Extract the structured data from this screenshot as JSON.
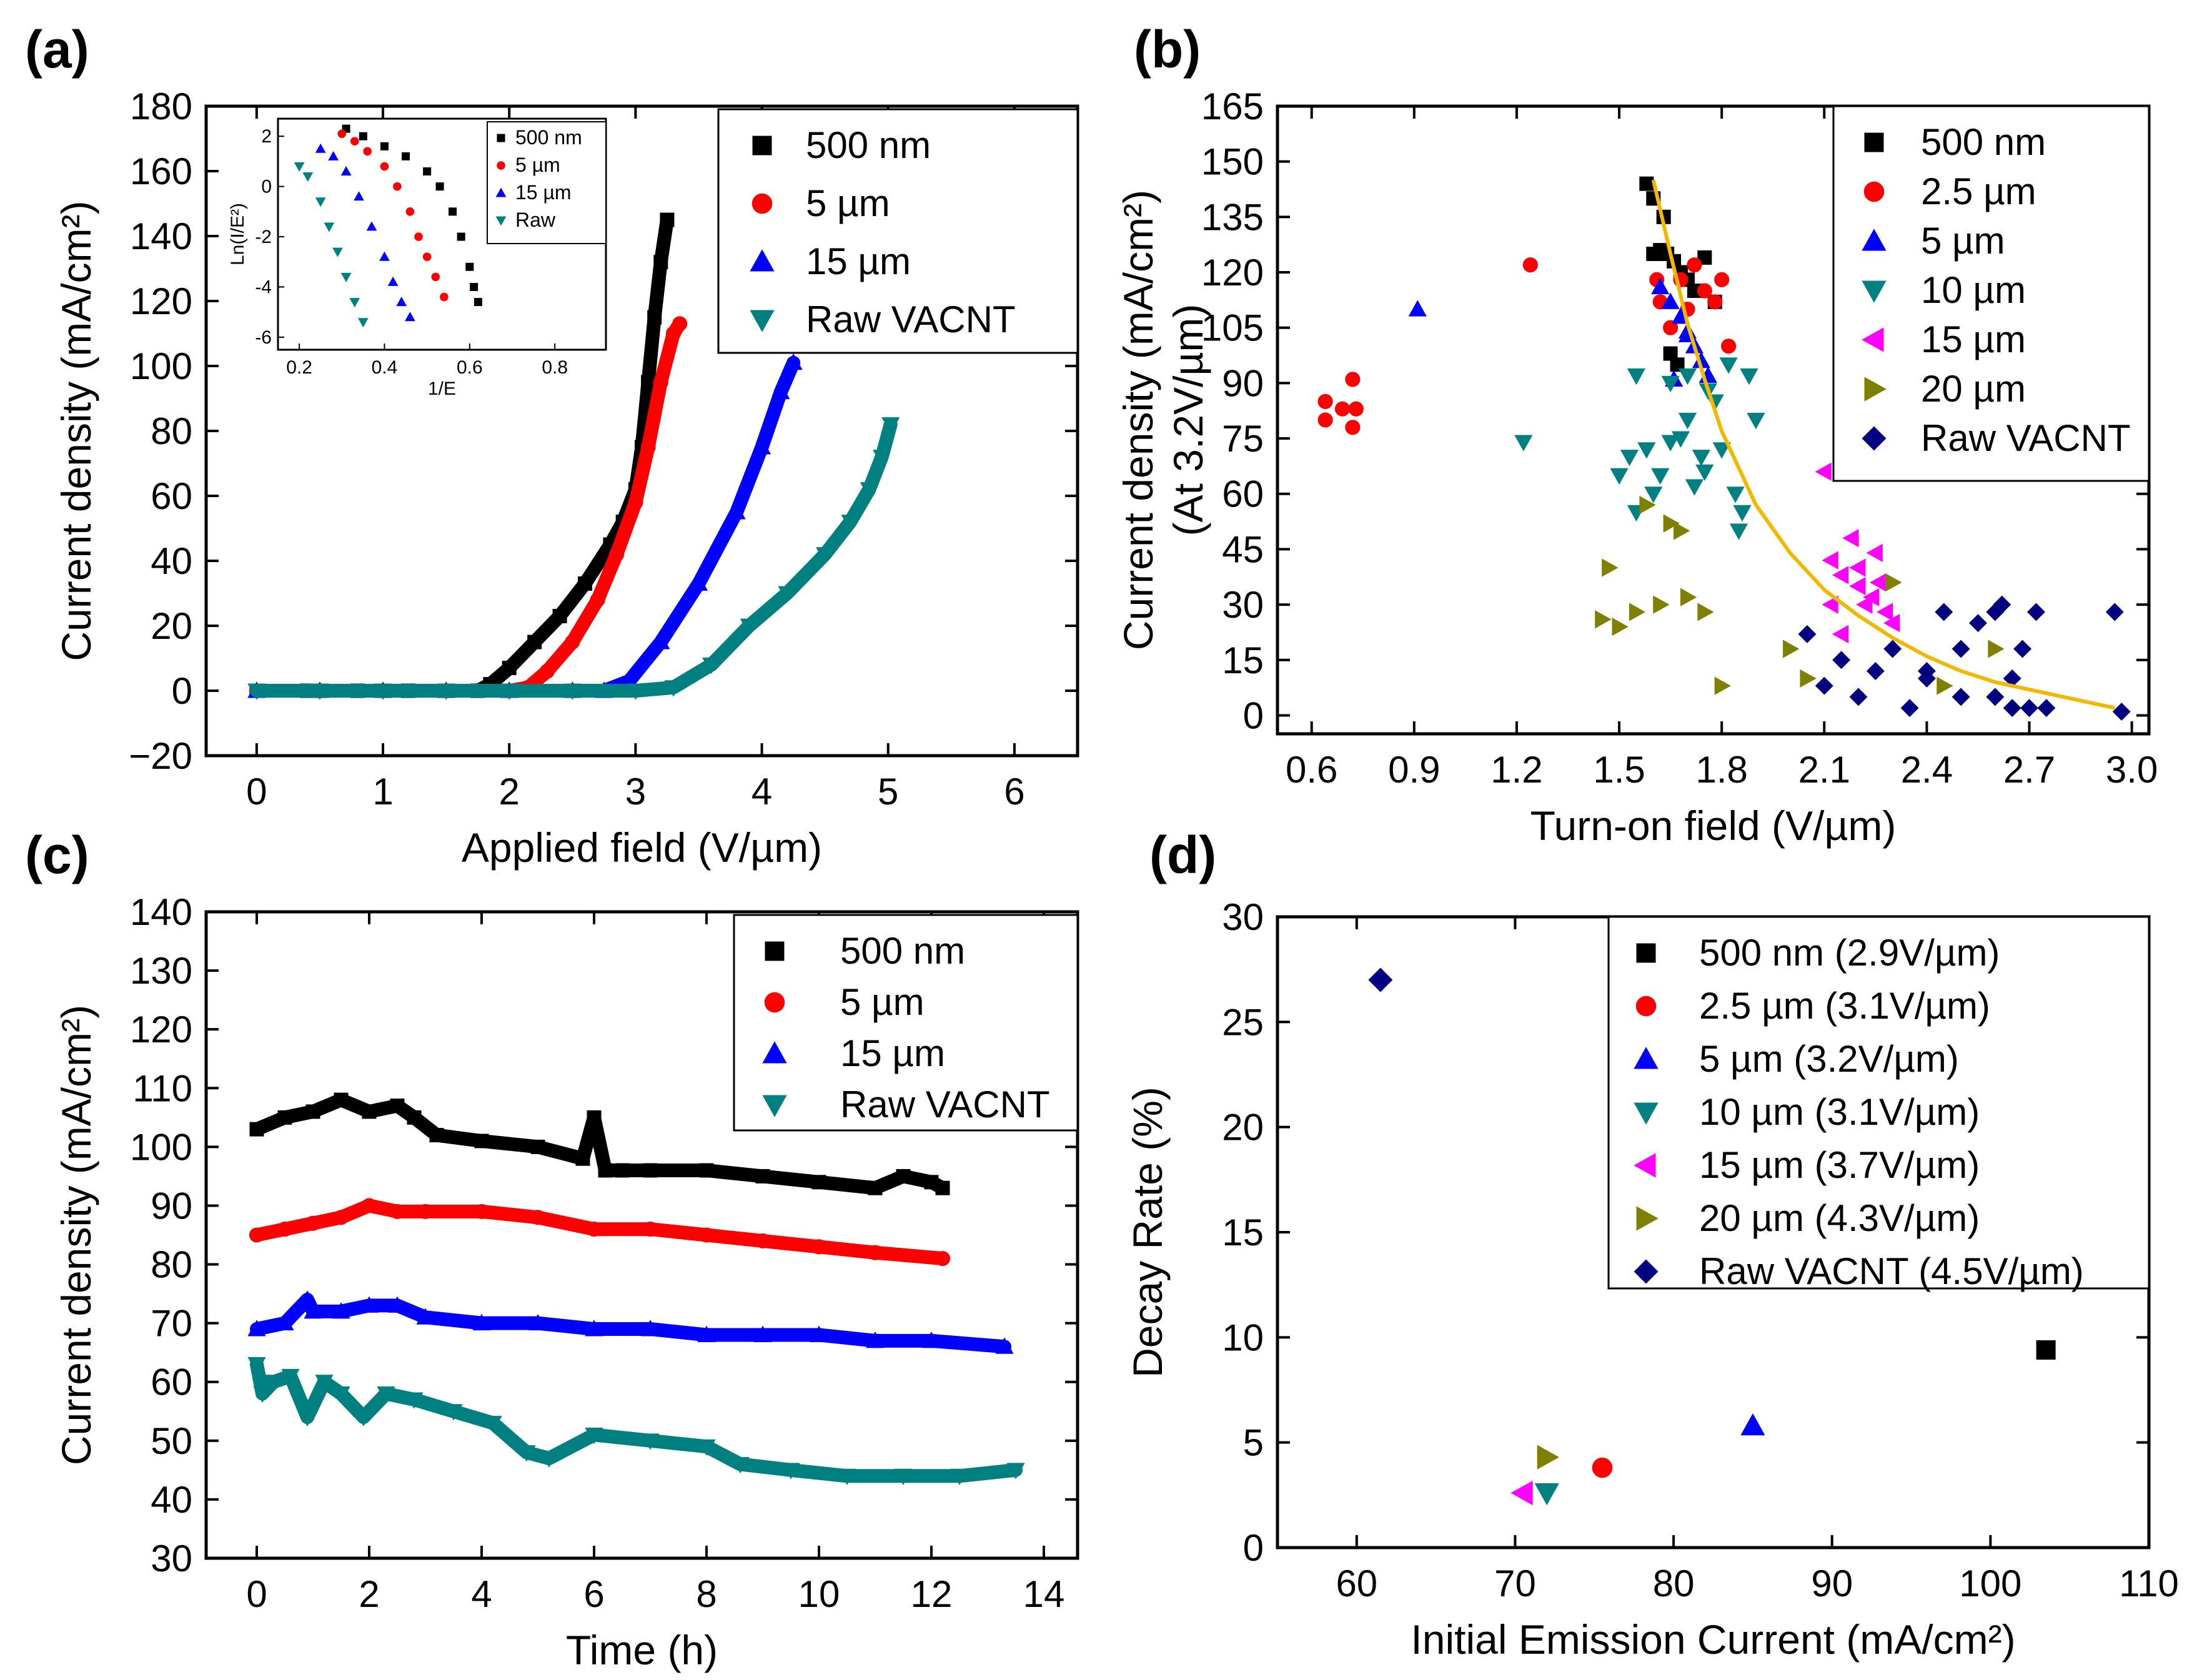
{
  "chart_data": [
    {
      "id": "a",
      "panel_label": "(a)",
      "type": "scatter",
      "xlabel": "Applied field (V/µm)",
      "ylabel": "Current density (mA/cm²)",
      "xlim": [
        -0.4,
        6.5
      ],
      "ylim": [
        -20,
        180
      ],
      "xticks": [
        0,
        1,
        2,
        3,
        4,
        5,
        6
      ],
      "yticks": [
        -20,
        0,
        20,
        40,
        60,
        80,
        100,
        120,
        140,
        160,
        180
      ],
      "legend_position": "top-right",
      "series": [
        {
          "name": "500 nm",
          "color": "#000000",
          "marker": "square",
          "x": [
            0,
            0.4,
            0.8,
            1.2,
            1.5,
            1.75,
            1.85,
            2.0,
            2.2,
            2.4,
            2.6,
            2.8,
            2.9,
            3.0,
            3.05,
            3.1,
            3.15,
            3.2,
            3.25
          ],
          "y": [
            0,
            0,
            0,
            0,
            0,
            0,
            2,
            7,
            15,
            23,
            33,
            45,
            52,
            62,
            75,
            95,
            115,
            132,
            145
          ]
        },
        {
          "name": "5 µm",
          "color": "#ff0000",
          "marker": "circle",
          "x": [
            0,
            0.5,
            1.0,
            1.5,
            2.0,
            2.15,
            2.3,
            2.5,
            2.7,
            2.85,
            3.0,
            3.1,
            3.2,
            3.3,
            3.35
          ],
          "y": [
            0,
            0,
            0,
            0,
            0,
            1,
            6,
            15,
            28,
            42,
            58,
            75,
            95,
            110,
            113
          ]
        },
        {
          "name": "15 µm",
          "color": "#0000ff",
          "marker": "triangle-up",
          "x": [
            0,
            0.5,
            1.0,
            1.5,
            2.0,
            2.5,
            2.75,
            2.95,
            3.2,
            3.5,
            3.8,
            4.0,
            4.15,
            4.25
          ],
          "y": [
            0,
            0,
            0,
            0,
            0,
            0,
            0,
            3,
            15,
            33,
            55,
            75,
            92,
            101
          ]
        },
        {
          "name": "Raw VACNT",
          "color": "#008080",
          "marker": "triangle-down",
          "x": [
            0,
            0.5,
            1.0,
            1.5,
            2.0,
            2.5,
            3.0,
            3.3,
            3.6,
            3.9,
            4.2,
            4.5,
            4.7,
            4.85,
            4.95,
            5.02
          ],
          "y": [
            0,
            0,
            0,
            0,
            0,
            0,
            0,
            1,
            8,
            20,
            30,
            42,
            52,
            62,
            72,
            82
          ]
        }
      ],
      "inset": {
        "xlabel": "1/E",
        "ylabel": "Ln(I/E²)",
        "xlim": [
          0.15,
          0.92
        ],
        "ylim": [
          -6.5,
          2.7
        ],
        "xticks": [
          0.2,
          0.4,
          0.6,
          0.8
        ],
        "yticks": [
          -6,
          -4,
          -2,
          0,
          2
        ],
        "xtick_labels": [
          "0.2",
          "0.4",
          "0.6",
          "0.8"
        ],
        "ytick_labels": [
          "-6",
          "-4",
          "-2",
          "0",
          "2"
        ],
        "series": [
          {
            "name": "500 nm",
            "color": "#000000",
            "marker": "square",
            "x": [
              0.31,
              0.35,
              0.4,
              0.45,
              0.5,
              0.53,
              0.56,
              0.58,
              0.6,
              0.61,
              0.62
            ],
            "y": [
              2.3,
              2.0,
              1.6,
              1.2,
              0.6,
              0.0,
              -1.0,
              -2.0,
              -3.2,
              -4.0,
              -4.6
            ]
          },
          {
            "name": "5 µm",
            "color": "#ff0000",
            "marker": "circle",
            "x": [
              0.3,
              0.33,
              0.36,
              0.4,
              0.43,
              0.46,
              0.48,
              0.5,
              0.52,
              0.54
            ],
            "y": [
              2.1,
              1.8,
              1.4,
              0.8,
              0.0,
              -1.0,
              -2.0,
              -2.8,
              -3.6,
              -4.4
            ]
          },
          {
            "name": "15 µm",
            "color": "#0000ff",
            "marker": "triangle-up",
            "x": [
              0.25,
              0.28,
              0.31,
              0.34,
              0.37,
              0.4,
              0.42,
              0.44,
              0.46
            ],
            "y": [
              1.5,
              1.2,
              0.6,
              -0.4,
              -1.6,
              -2.8,
              -3.8,
              -4.6,
              -5.2
            ]
          },
          {
            "name": "Raw",
            "color": "#008080",
            "marker": "triangle-down",
            "x": [
              0.2,
              0.22,
              0.25,
              0.27,
              0.29,
              0.31,
              0.33,
              0.35
            ],
            "y": [
              0.8,
              0.4,
              -0.6,
              -1.6,
              -2.6,
              -3.6,
              -4.6,
              -5.4
            ]
          }
        ]
      }
    },
    {
      "id": "b",
      "panel_label": "(b)",
      "type": "scatter",
      "xlabel": "Turn-on field (V/µm)",
      "ylabel_line1": "Current density (mA/cm²)",
      "ylabel_line2": "(At 3.2V/µm)",
      "xlim": [
        0.5,
        3.05
      ],
      "ylim": [
        -5,
        165
      ],
      "xticks": [
        0.6,
        0.9,
        1.2,
        1.5,
        1.8,
        2.1,
        2.4,
        2.7,
        3.0
      ],
      "xtick_labels": [
        "0.6",
        "0.9",
        "1.2",
        "1.5",
        "1.8",
        "2.1",
        "2.4",
        "2.7",
        "3.0"
      ],
      "yticks": [
        0,
        15,
        30,
        45,
        60,
        75,
        90,
        105,
        120,
        135,
        150,
        165
      ],
      "legend_position": "top-right",
      "series": [
        {
          "name": "500 nm",
          "color": "#000000",
          "marker": "square",
          "x": [
            1.58,
            1.6,
            1.62,
            1.64,
            1.66,
            1.68,
            1.7,
            1.72,
            1.75,
            1.78,
            1.65,
            1.67,
            1.6,
            1.63
          ],
          "y": [
            144,
            140,
            126,
            125,
            123,
            120,
            118,
            115,
            124,
            112,
            98,
            95,
            125,
            135
          ]
        },
        {
          "name": "2.5 µm",
          "color": "#ff0000",
          "marker": "circle",
          "x": [
            0.64,
            0.64,
            0.69,
            0.72,
            0.73,
            0.72,
            1.24,
            1.61,
            1.62,
            1.65,
            1.68,
            1.7,
            1.72,
            1.75,
            1.78,
            1.8,
            1.82
          ],
          "y": [
            85,
            80,
            83,
            91,
            83,
            78,
            122,
            118,
            112,
            105,
            118,
            110,
            122,
            115,
            112,
            118,
            100
          ]
        },
        {
          "name": "5 µm",
          "color": "#0000ff",
          "marker": "triangle-up",
          "x": [
            0.91,
            1.62,
            1.65,
            1.68,
            1.7,
            1.72,
            1.74,
            1.76,
            1.66,
            1.7
          ],
          "y": [
            110,
            116,
            112,
            108,
            103,
            100,
            96,
            92,
            91,
            104
          ]
        },
        {
          "name": "10 µm",
          "color": "#008080",
          "marker": "triangle-down",
          "x": [
            1.22,
            1.5,
            1.53,
            1.55,
            1.58,
            1.6,
            1.62,
            1.65,
            1.68,
            1.7,
            1.72,
            1.74,
            1.76,
            1.78,
            1.8,
            1.82,
            1.84,
            1.86,
            1.88,
            1.9,
            1.55,
            1.65,
            1.75,
            1.85,
            1.7
          ],
          "y": [
            74,
            65,
            70,
            92,
            72,
            60,
            65,
            90,
            75,
            80,
            62,
            70,
            88,
            85,
            72,
            95,
            60,
            55,
            92,
            80,
            55,
            74,
            66,
            50,
            92
          ]
        },
        {
          "name": "15 µm",
          "color": "#ff00ff",
          "marker": "triangle-left",
          "x": [
            2.1,
            2.12,
            2.15,
            2.18,
            2.2,
            2.22,
            2.25,
            2.28,
            2.3,
            2.15,
            2.2,
            2.24,
            2.12,
            2.26
          ],
          "y": [
            66,
            42,
            38,
            48,
            35,
            30,
            44,
            28,
            25,
            22,
            40,
            32,
            30,
            36
          ]
        },
        {
          "name": "20 µm",
          "color": "#808000",
          "marker": "triangle-right",
          "x": [
            1.45,
            1.47,
            1.5,
            1.55,
            1.58,
            1.62,
            1.65,
            1.7,
            1.75,
            1.8,
            2.0,
            2.05,
            2.3,
            2.45,
            2.6,
            1.68
          ],
          "y": [
            26,
            40,
            24,
            28,
            57,
            30,
            52,
            32,
            28,
            8,
            18,
            10,
            36,
            8,
            18,
            50
          ]
        },
        {
          "name": "Raw VACNT",
          "color": "#000080",
          "marker": "diamond",
          "x": [
            2.05,
            2.1,
            2.15,
            2.2,
            2.25,
            2.3,
            2.35,
            2.4,
            2.45,
            2.5,
            2.55,
            2.6,
            2.62,
            2.65,
            2.68,
            2.7,
            2.72,
            2.75,
            2.95,
            2.97,
            2.6,
            2.65,
            2.5,
            2.4
          ],
          "y": [
            22,
            8,
            15,
            5,
            12,
            18,
            2,
            10,
            28,
            5,
            25,
            28,
            30,
            2,
            18,
            2,
            28,
            2,
            28,
            1,
            5,
            10,
            18,
            12
          ]
        }
      ],
      "fit_curve": {
        "color": "#f2b800",
        "x": [
          1.6,
          1.65,
          1.7,
          1.75,
          1.8,
          1.9,
          2.0,
          2.1,
          2.2,
          2.3,
          2.4,
          2.5,
          2.6,
          2.7,
          2.8,
          2.95
        ],
        "y": [
          145,
          125,
          106,
          91,
          77,
          57,
          44,
          34,
          27,
          21,
          16,
          12,
          9,
          7,
          5,
          2
        ]
      }
    },
    {
      "id": "c",
      "panel_label": "(c)",
      "type": "scatter",
      "xlabel": "Time (h)",
      "ylabel": "Current density (mA/cm²)",
      "xlim": [
        -0.9,
        14.6
      ],
      "ylim": [
        30,
        140
      ],
      "xticks": [
        0,
        2,
        4,
        6,
        8,
        10,
        12,
        14
      ],
      "yticks": [
        30,
        40,
        50,
        60,
        70,
        80,
        90,
        100,
        110,
        120,
        130,
        140
      ],
      "legend_position": "top-right",
      "series": [
        {
          "name": "500 nm",
          "color": "#000000",
          "marker": "square",
          "x": [
            0,
            0.5,
            1.0,
            1.5,
            2.0,
            2.5,
            2.8,
            3.2,
            4,
            5,
            5.8,
            6.0,
            6.2,
            6.5,
            7,
            8,
            9,
            10,
            11,
            11.5,
            12,
            12.2
          ],
          "y": [
            103,
            105,
            106,
            108,
            106,
            107,
            105,
            102,
            101,
            100,
            98,
            105,
            96,
            96,
            96,
            96,
            95,
            94,
            93,
            95,
            94,
            93
          ]
        },
        {
          "name": "5 µm",
          "color": "#ff0000",
          "marker": "circle",
          "x": [
            0,
            0.5,
            1,
            1.5,
            2,
            2.5,
            3,
            4,
            5,
            6,
            7,
            8,
            9,
            10,
            11,
            12.2
          ],
          "y": [
            85,
            86,
            87,
            88,
            90,
            89,
            89,
            89,
            88,
            86,
            86,
            85,
            84,
            83,
            82,
            81
          ]
        },
        {
          "name": "15 µm",
          "color": "#0000ff",
          "marker": "triangle-up",
          "x": [
            0,
            0.5,
            0.9,
            1,
            1.5,
            2,
            2.5,
            3,
            4,
            5,
            6,
            7,
            8,
            9,
            10,
            11,
            12,
            13.3
          ],
          "y": [
            69,
            70,
            74,
            72,
            72,
            73,
            73,
            71,
            70,
            70,
            69,
            69,
            68,
            68,
            68,
            67,
            67,
            66
          ]
        },
        {
          "name": "Raw VACNT",
          "color": "#008080",
          "marker": "triangle-down",
          "x": [
            0,
            0.1,
            0.3,
            0.6,
            0.9,
            1.2,
            1.5,
            1.9,
            2.3,
            2.8,
            3.5,
            4.2,
            4.8,
            5.2,
            6,
            7,
            8,
            8.6,
            9.5,
            10.5,
            11.5,
            12.5,
            13.5
          ],
          "y": [
            63,
            58,
            60,
            61,
            54,
            60,
            58,
            54,
            58,
            57,
            55,
            53,
            48,
            47,
            51,
            50,
            49,
            46,
            45,
            44,
            44,
            44,
            45
          ]
        }
      ]
    },
    {
      "id": "d",
      "panel_label": "(d)",
      "type": "scatter",
      "xlabel": "Initial Emission Current (mA/cm²)",
      "ylabel": "Decay Rate (%)",
      "xlim": [
        55,
        110
      ],
      "ylim": [
        0,
        30
      ],
      "xticks": [
        60,
        70,
        80,
        90,
        100,
        110
      ],
      "yticks": [
        0,
        5,
        10,
        15,
        20,
        25,
        30
      ],
      "legend_position": "top-right",
      "series": [
        {
          "name": "500 nm (2.9V/µm)",
          "color": "#000000",
          "marker": "square",
          "x": [
            103.5
          ],
          "y": [
            9.4
          ]
        },
        {
          "name": "2.5 µm (3.1V/µm)",
          "color": "#ff0000",
          "marker": "circle",
          "x": [
            75.5
          ],
          "y": [
            3.8
          ]
        },
        {
          "name": "5 µm (3.2V/µm)",
          "color": "#0000ff",
          "marker": "triangle-up",
          "x": [
            85
          ],
          "y": [
            5.8
          ]
        },
        {
          "name": "10 µm (3.1V/µm)",
          "color": "#008080",
          "marker": "triangle-down",
          "x": [
            72
          ],
          "y": [
            2.6
          ]
        },
        {
          "name": "15 µm (3.7V/µm)",
          "color": "#ff00ff",
          "marker": "triangle-left",
          "x": [
            70.5
          ],
          "y": [
            2.6
          ]
        },
        {
          "name": "20 µm (4.3V/µm)",
          "color": "#808000",
          "marker": "triangle-right",
          "x": [
            72
          ],
          "y": [
            4.3
          ]
        },
        {
          "name": "Raw VACNT (4.5V/µm)",
          "color": "#000080",
          "marker": "diamond",
          "x": [
            61.5
          ],
          "y": [
            27
          ]
        }
      ]
    }
  ]
}
